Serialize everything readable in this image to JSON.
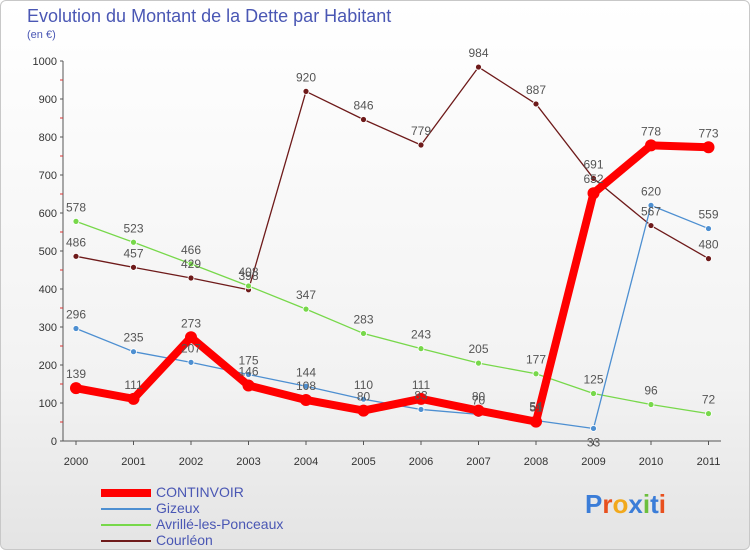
{
  "chart_data": {
    "type": "line",
    "title": "Evolution du Montant de la Dette par Habitant",
    "subtitle": "(en €)",
    "xlabel": "",
    "ylabel": "",
    "x": [
      "2000",
      "2001",
      "2002",
      "2003",
      "2004",
      "2005",
      "2006",
      "2007",
      "2008",
      "2009",
      "2010",
      "2011"
    ],
    "ylim": [
      0,
      1000
    ],
    "yticks": [
      "0",
      "100",
      "200",
      "300",
      "400",
      "500",
      "600",
      "700",
      "800",
      "900",
      "1000"
    ],
    "grid": false,
    "legend_position": "bottom-left",
    "series": [
      {
        "name": "CONTINVOIR",
        "color": "#ff0000",
        "values": [
          139,
          111,
          273,
          146,
          108,
          80,
          111,
          80,
          51,
          652,
          778,
          773
        ],
        "labels": [
          "139",
          "111",
          "273",
          "146",
          "108",
          "80",
          "111",
          "80",
          "51",
          "652",
          "778",
          "773"
        ]
      },
      {
        "name": "Gizeux",
        "color": "#4d8fd1",
        "values": [
          296,
          235,
          207,
          175,
          144,
          110,
          83,
          70,
          54,
          33,
          620,
          559
        ],
        "labels": [
          "296",
          "235",
          "207",
          "175",
          "144",
          "110",
          "83",
          "70",
          "54",
          "33",
          "620",
          "559"
        ]
      },
      {
        "name": "Avrillé-les-Ponceaux",
        "color": "#77d84a",
        "values": [
          578,
          523,
          466,
          408,
          347,
          283,
          243,
          205,
          177,
          125,
          96,
          72
        ],
        "labels": [
          "578",
          "523",
          "466",
          "408",
          "347",
          "283",
          "243",
          "205",
          "177",
          "125",
          "96",
          "72"
        ]
      },
      {
        "name": "Courléon",
        "color": "#6e1a1a",
        "values": [
          486,
          457,
          429,
          398,
          920,
          846,
          779,
          984,
          887,
          691,
          567,
          480
        ],
        "labels": [
          "486",
          "457",
          "429",
          "398",
          "920",
          "846",
          "779",
          "984",
          "887",
          "691",
          "567",
          "480"
        ]
      }
    ]
  },
  "branding": {
    "logo_letters": [
      "P",
      "r",
      "o",
      "x",
      "i",
      "t",
      "i"
    ],
    "logo_colors": [
      "#3b7dd8",
      "#e8501e",
      "#f2a91c",
      "#3b7dd8",
      "#6cbf3d",
      "#3b7dd8",
      "#e8501e"
    ]
  }
}
